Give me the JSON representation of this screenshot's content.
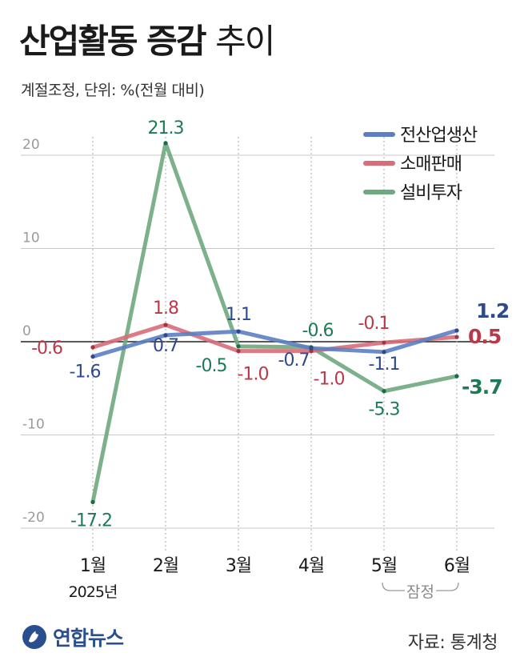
{
  "header": {
    "title_bold": "산업활동 증감",
    "title_light": "추이",
    "subtitle": "계절조정, 단위: %(전월 대비)"
  },
  "footer": {
    "logo_text": "연합뉴스",
    "source": "자료: 통계청"
  },
  "colors": {
    "industrial_production": "#5b7fc2",
    "retail_sales": "#d86d78",
    "facility_investment": "#6ea97f",
    "label_blue": "#2e4a8c",
    "label_red": "#b83a4a",
    "label_green": "#1d7a55"
  },
  "chart_data": {
    "type": "line",
    "categories": [
      "1월",
      "2월",
      "3월",
      "4월",
      "5월",
      "6월"
    ],
    "year_label": "2025년",
    "preliminary_label": "잠정",
    "preliminary_months": [
      "5월",
      "6월"
    ],
    "ylim": [
      -22,
      23
    ],
    "y_ticks": [
      20,
      10,
      0,
      -10,
      -20
    ],
    "grid": true,
    "legend_position": "top-right",
    "series": [
      {
        "name": "전산업생산",
        "color_key": "industrial_production",
        "label_color_key": "label_blue",
        "values": [
          -1.6,
          0.7,
          1.1,
          -0.7,
          -1.1,
          1.2
        ],
        "labels": [
          "-1.6",
          "0.7",
          "1.1",
          "-0.7",
          "-1.1",
          "1.2"
        ]
      },
      {
        "name": "소매판매",
        "color_key": "retail_sales",
        "label_color_key": "label_red",
        "values": [
          -0.6,
          1.8,
          -1.0,
          -1.0,
          -0.1,
          0.5
        ],
        "labels": [
          "-0.6",
          "1.8",
          "-1.0",
          "-1.0",
          "-0.1",
          "0.5"
        ]
      },
      {
        "name": "설비투자",
        "color_key": "facility_investment",
        "label_color_key": "label_green",
        "values": [
          -17.2,
          21.3,
          -0.5,
          -0.6,
          -5.3,
          -3.7
        ],
        "labels": [
          "-17.2",
          "21.3",
          "-0.5",
          "-0.6",
          "-5.3",
          "-3.7"
        ]
      }
    ]
  }
}
